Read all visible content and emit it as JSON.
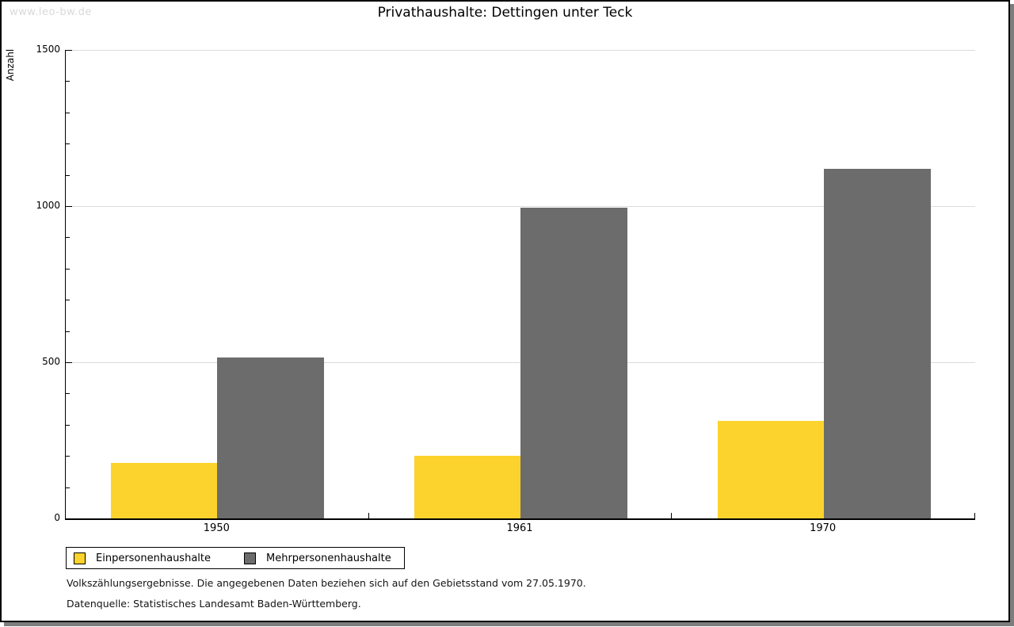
{
  "watermark": "www.leo-bw.de",
  "title": "Privathaushalte: Dettingen unter Teck",
  "chart_data": {
    "type": "bar",
    "title": "Privathaushalte: Dettingen unter Teck",
    "ylabel": "Anzahl",
    "xlabel": "",
    "categories": [
      "1950",
      "1961",
      "1970"
    ],
    "series": [
      {
        "name": "Einpersonenhaushalte",
        "color": "#fcd32c",
        "values": [
          178,
          200,
          313
        ]
      },
      {
        "name": "Mehrpersonenhaushalte",
        "color": "#6c6c6c",
        "values": [
          516,
          995,
          1120
        ]
      }
    ],
    "ylim": [
      0,
      1500
    ],
    "yticks": [
      0,
      500,
      1000,
      1500
    ],
    "minor_tick_step": 100,
    "grid": true,
    "gridline_color": "#dcdcdc",
    "legend_position": "bottom-left"
  },
  "footer": {
    "line1": "Volkszählungsergebnisse. Die angegebenen Daten beziehen sich auf den Gebietsstand vom 27.05.1970.",
    "line2": "Datenquelle: Statistisches Landesamt Baden-Württemberg."
  }
}
